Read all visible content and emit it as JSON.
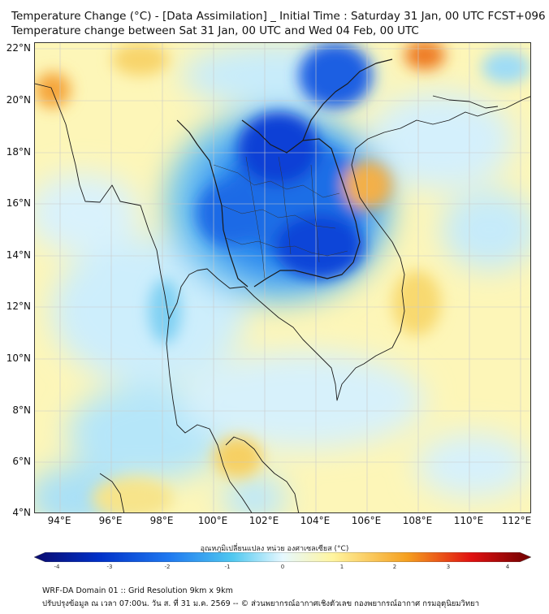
{
  "header": {
    "title_line1": "Temperature Change (°C) - [Data Assimilation] _ Initial Time : Saturday 31 Jan, 00 UTC FCST+096",
    "title_line2": "Temperature change between Sat 31 Jan, 00 UTC and Wed 04 Feb, 00 UTC"
  },
  "map": {
    "lat_labels": [
      "22°N",
      "20°N",
      "18°N",
      "16°N",
      "14°N",
      "12°N",
      "10°N",
      "8°N",
      "6°N",
      "4°N"
    ],
    "lon_labels": [
      "94°E",
      "96°E",
      "98°E",
      "100°E",
      "102°E",
      "104°E",
      "106°E",
      "108°E",
      "110°E",
      "112°E"
    ]
  },
  "colorbar": {
    "title": "อุณหภูมิเปลี่ยนแปลง หน่วย องศาเซลเซียส (°C)",
    "ticks": [
      "-4",
      "-3",
      "-2",
      "-1",
      "0",
      "1",
      "2",
      "3",
      "4"
    ],
    "colors": {
      "min": "#0a0a6e",
      "dark_blue": "#0030c8",
      "blue": "#1e78f0",
      "light_blue": "#50c8f0",
      "pale": "#e6f8ff",
      "yellow": "#fff5a0",
      "orange": "#f5a020",
      "red": "#e01010",
      "max": "#6e0000"
    }
  },
  "footer": {
    "line1": "WRF-DA Domain 01 :: Grid Resolution 9km x 9km",
    "line2": "ปรับปรุงข้อมูล ณ เวลา 07:00น. วัน ส. ที่ 31 ม.ค. 2569 -- © ส่วนพยากรณ์อากาศเชิงตัวเลข กองพยากรณ์อากาศ กรมอุตุนิยมวิทยา"
  }
}
